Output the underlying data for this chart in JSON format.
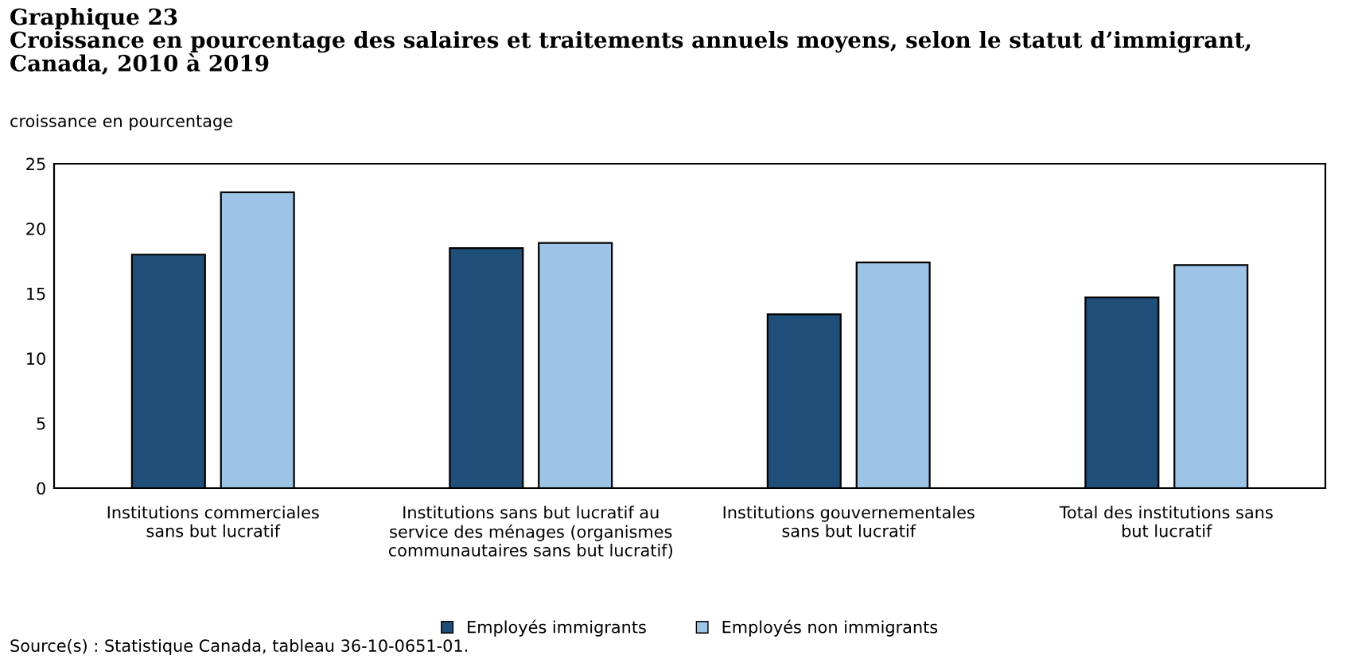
{
  "chart_data": {
    "type": "bar",
    "title": "Graphique 23\nCroissance en pourcentage des salaires et traitements annuels moyens, selon le statut d’immigrant,\nCanada, 2010 à 2019",
    "ylabel": "croissance en pourcentage",
    "categories": [
      "Institutions commerciales\nsans but lucratif",
      "Institutions sans but lucratif au\nservice des ménages (organismes\ncommunautaires sans but lucratif)",
      "Institutions gouvernementales\nsans but lucratif",
      "Total des institutions sans\nbut lucratif"
    ],
    "series": [
      {
        "name": "Employés immigrants",
        "color": "#1f4e79",
        "values": [
          18.0,
          18.5,
          13.4,
          14.7
        ]
      },
      {
        "name": "Employés non immigrants",
        "color": "#9dc3e6",
        "values": [
          22.8,
          18.9,
          17.4,
          17.2
        ]
      }
    ],
    "ylim": [
      0,
      25
    ],
    "yticks": [
      0,
      5,
      10,
      15,
      20,
      25
    ],
    "grid": false,
    "legend": "bottom",
    "annotations": [
      "Source(s) : Statistique Canada, tableau 36-10-0651-01."
    ]
  }
}
